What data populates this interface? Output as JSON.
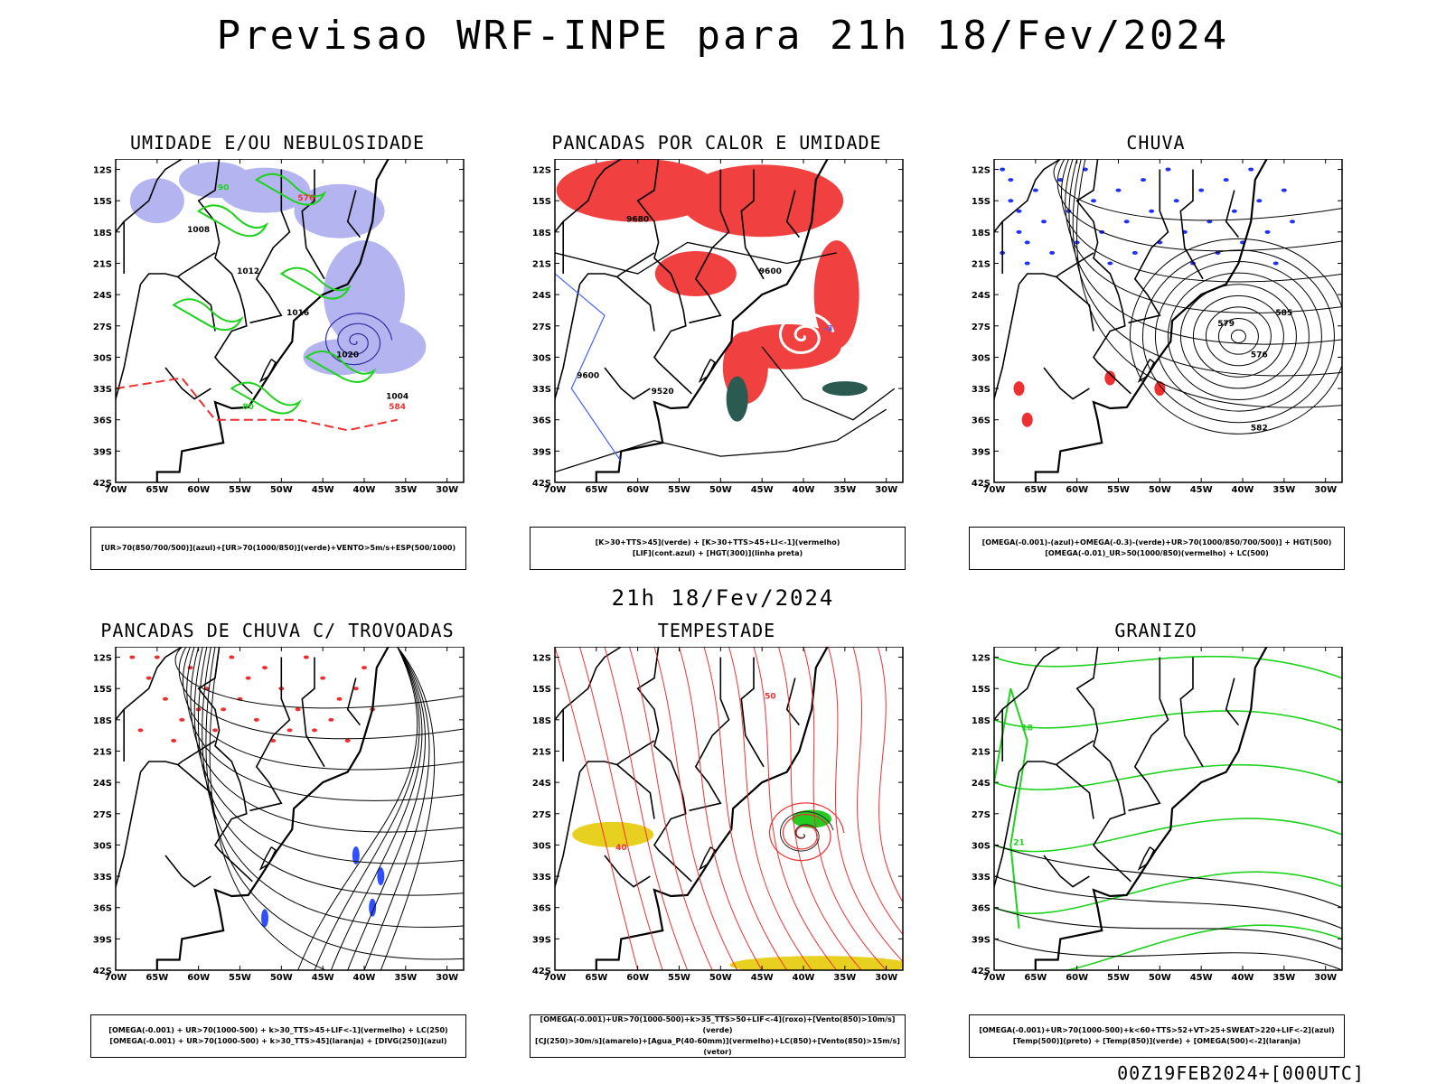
{
  "header": {
    "main_title": "Previsao WRF-INPE  para 21h 18/Fev/2024",
    "mid_title": "21h 18/Fev/2024",
    "run_stamp": "00Z19FEB2024+[000UTC]"
  },
  "axes": {
    "lat_ticks": [
      "12S",
      "15S",
      "18S",
      "21S",
      "24S",
      "27S",
      "30S",
      "33S",
      "36S",
      "39S",
      "42S"
    ],
    "lon_ticks": [
      "70W",
      "65W",
      "60W",
      "55W",
      "50W",
      "45W",
      "40W",
      "35W",
      "30W"
    ]
  },
  "panels": [
    {
      "id": "umidade",
      "title": "UMIDADE E/OU NEBULOSIDADE",
      "legend": [
        "[UR>70(850/700/500)](azul)+[UR>70(1000/850)](verde)+VENTO>5m/s+ESP(500/1000)"
      ],
      "labels": [
        "1008",
        "1012",
        "1016",
        "1020",
        "1004",
        "576",
        "584",
        "90",
        "80"
      ]
    },
    {
      "id": "pancadas-calor",
      "title": "PANCADAS POR CALOR E UMIDADE",
      "legend": [
        "[K>30+TTS>45](verde) + [K>30+TTS>45+LI<-1](vermelho)",
        "[LIF](cont.azul) + [HGT(300)](linha preta)"
      ],
      "labels": [
        "9680",
        "9600",
        "9520",
        "-3"
      ]
    },
    {
      "id": "chuva",
      "title": "CHUVA",
      "legend": [
        "[OMEGA(-0.001)-(azul)+OMEGA(-0.3)-(verde)+UR>70(1000/850/700/500)] + HGT(500)",
        "[OMEGA(-0.01)_UR>50(1000/850)(vermelho) + LC(500)"
      ],
      "labels": [
        "585",
        "582",
        "579",
        "576"
      ]
    },
    {
      "id": "trovoadas",
      "title": "PANCADAS DE CHUVA C/ TROVOADAS",
      "legend": [
        "[OMEGA(-0.001) + UR>70(1000-500) + k>30_TTS>45+LIF<-1](vermelho) + LC(250)",
        "[OMEGA(-0.001) + UR>70(1000-500) + k>30_TTS>45](laranja) + [DIVG(250)](azul)"
      ],
      "labels": []
    },
    {
      "id": "tempestade",
      "title": "TEMPESTADE",
      "legend": [
        "[OMEGA(-0.001)+UR>70(1000-500)+k>35_TTS>50+LIF<-4](roxo)+[Vento(850)>10m/s](verde)",
        "[CJ(250)>30m/s](amarelo)+[Agua_P(40-60mm)](vermelho)+LC(850)+[Vento(850)>15m/s](vetor)"
      ],
      "labels": [
        "50",
        "40"
      ]
    },
    {
      "id": "granizo",
      "title": "GRANIZO",
      "legend": [
        "[OMEGA(-0.001)+UR>70(1000-500)+k<60+TTS>52+VT>25+SWEAT>220+LIF<-2](azul)",
        "[Temp(500)](preto) + [Temp(850)](verde) + [OMEGA(500)<-2](laranja)"
      ],
      "labels": [
        "18",
        "21"
      ]
    }
  ],
  "colors": {
    "humidity_blue": "#b4b4f0",
    "humidity_green": "#1ed21e",
    "instability_red": "#f04040",
    "instability_green": "#2a5a50",
    "jet_yellow": "#e8d020",
    "contour_blue": "#4060ff",
    "dashed_red": "#f03030"
  }
}
